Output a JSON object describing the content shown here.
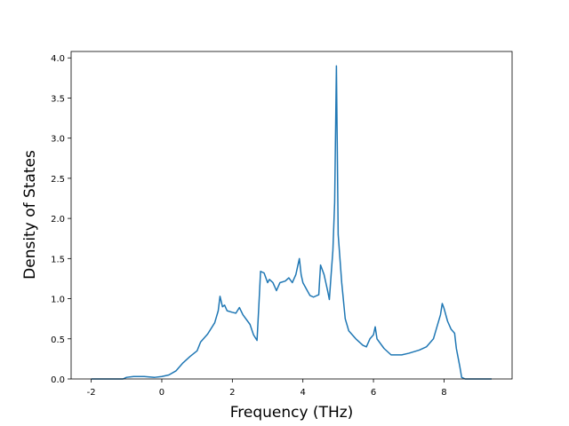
{
  "chart_data": {
    "type": "line",
    "xlabel": "Frequency (THz)",
    "ylabel": "Density of States",
    "xlim": [
      -2.57,
      9.93
    ],
    "ylim": [
      0,
      4.08
    ],
    "xticks": [
      -2,
      0,
      2,
      4,
      6,
      8
    ],
    "yticks": [
      {
        "value": 0,
        "label": "0.0"
      },
      {
        "value": 0.5,
        "label": "0.5"
      },
      {
        "value": 1,
        "label": "1.0"
      },
      {
        "value": 1.5,
        "label": "1.5"
      },
      {
        "value": 2,
        "label": "2.0"
      },
      {
        "value": 2.5,
        "label": "2.5"
      },
      {
        "value": 3,
        "label": "3.0"
      },
      {
        "value": 3.5,
        "label": "3.5"
      },
      {
        "value": 4,
        "label": "4.0"
      }
    ],
    "color": "#1f77b4",
    "x": [
      -2,
      -1.1,
      -1,
      -0.8,
      -0.5,
      -0.2,
      0,
      0.2,
      0.4,
      0.6,
      0.8,
      1.0,
      1.1,
      1.3,
      1.5,
      1.6,
      1.65,
      1.72,
      1.78,
      1.85,
      2.0,
      2.1,
      2.2,
      2.3,
      2.5,
      2.6,
      2.7,
      2.75,
      2.8,
      2.9,
      3.0,
      3.05,
      3.15,
      3.25,
      3.35,
      3.5,
      3.6,
      3.7,
      3.8,
      3.9,
      3.95,
      4.0,
      4.1,
      4.2,
      4.3,
      4.45,
      4.5,
      4.6,
      4.7,
      4.75,
      4.8,
      4.85,
      4.9,
      4.95,
      5.0,
      5.1,
      5.2,
      5.3,
      5.5,
      5.7,
      5.8,
      5.9,
      6.0,
      6.05,
      6.1,
      6.3,
      6.5,
      6.8,
      7.0,
      7.3,
      7.5,
      7.7,
      7.8,
      7.9,
      7.95,
      8.0,
      8.1,
      8.2,
      8.3,
      8.35,
      8.45,
      8.5,
      8.6,
      9.35
    ],
    "values": [
      0,
      0,
      0.02,
      0.03,
      0.03,
      0.02,
      0.03,
      0.05,
      0.1,
      0.2,
      0.28,
      0.35,
      0.46,
      0.56,
      0.7,
      0.85,
      1.03,
      0.9,
      0.92,
      0.85,
      0.83,
      0.82,
      0.89,
      0.8,
      0.68,
      0.55,
      0.48,
      0.9,
      1.34,
      1.32,
      1.2,
      1.24,
      1.2,
      1.1,
      1.2,
      1.22,
      1.26,
      1.2,
      1.3,
      1.5,
      1.3,
      1.2,
      1.12,
      1.04,
      1.02,
      1.05,
      1.42,
      1.3,
      1.1,
      0.99,
      1.3,
      1.6,
      2.2,
      3.9,
      1.8,
      1.2,
      0.75,
      0.6,
      0.5,
      0.42,
      0.4,
      0.5,
      0.55,
      0.65,
      0.5,
      0.38,
      0.3,
      0.3,
      0.32,
      0.36,
      0.4,
      0.5,
      0.65,
      0.8,
      0.94,
      0.88,
      0.72,
      0.62,
      0.57,
      0.38,
      0.15,
      0.02,
      0,
      0
    ]
  }
}
